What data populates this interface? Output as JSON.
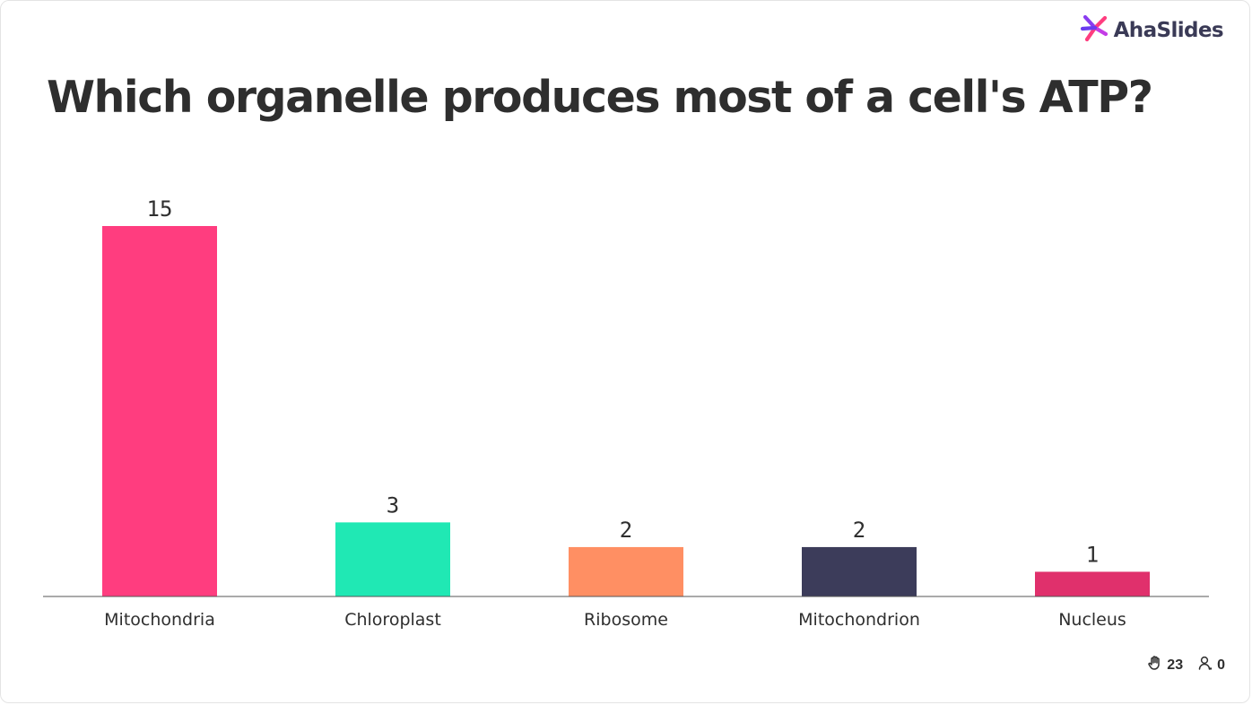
{
  "brand": {
    "name": "AhaSlides"
  },
  "question": {
    "title": "Which organelle produces most of a cell's ATP?"
  },
  "footer": {
    "responses": "23",
    "participants": "0"
  },
  "icons": {
    "responses": "hand-icon",
    "participants": "user-icon",
    "brand": "ahaslides-logo-icon"
  },
  "chart_data": {
    "type": "bar",
    "categories": [
      "Mitochondria",
      "Chloroplast",
      "Ribosome",
      "Mitochondrion",
      "Nucleus"
    ],
    "values": [
      15,
      3,
      2,
      2,
      1
    ],
    "colors": [
      "#ff3d7f",
      "#20e8b4",
      "#ff8f63",
      "#3c3c5a",
      "#e0306c"
    ],
    "ylim": [
      0,
      15
    ],
    "grid": false,
    "legend": "none"
  }
}
